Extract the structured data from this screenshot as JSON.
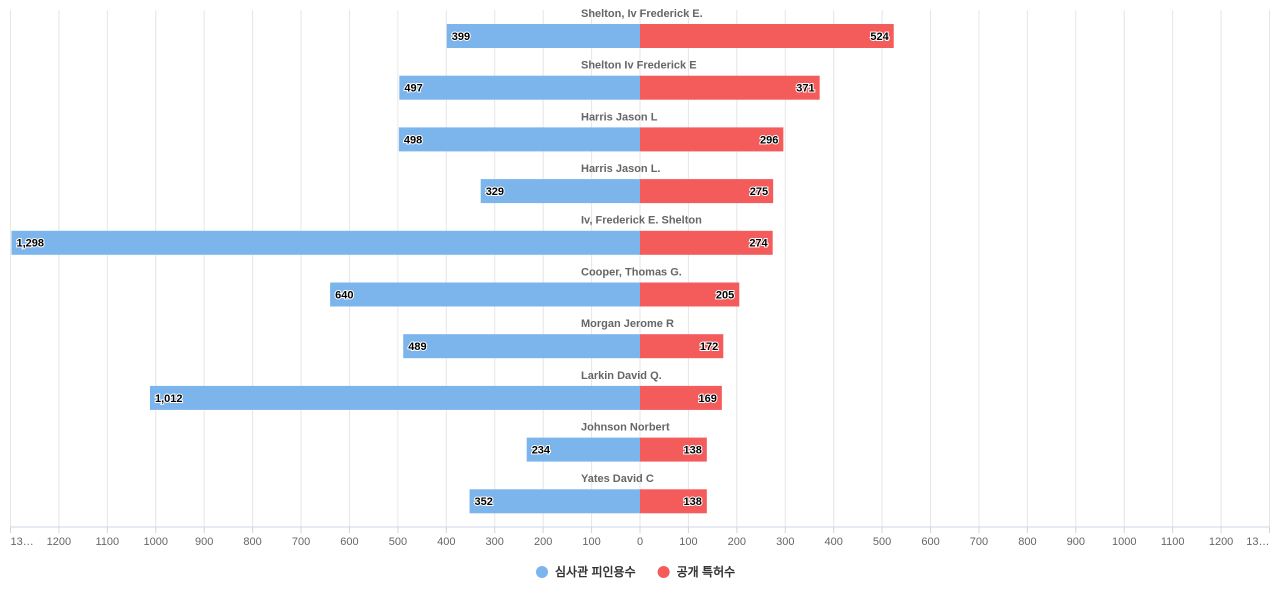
{
  "chart_data": {
    "type": "bar",
    "orientation": "butterfly",
    "categories": [
      "Shelton, Iv Frederick E.",
      "Shelton Iv Frederick E",
      "Harris Jason L",
      "Harris Jason L.",
      "Iv, Frederick E. Shelton",
      "Cooper, Thomas G.",
      "Morgan Jerome R",
      "Larkin David Q.",
      "Johnson Norbert",
      "Yates David C"
    ],
    "series": [
      {
        "name": "심사관 피인용수",
        "color": "#7cb5ec",
        "side": "left",
        "values": [
          399,
          497,
          498,
          329,
          1298,
          640,
          489,
          1012,
          234,
          352
        ],
        "value_labels": [
          "399",
          "497",
          "498",
          "329",
          "1,298",
          "640",
          "489",
          "1,012",
          "234",
          "352"
        ]
      },
      {
        "name": "공개 특허수",
        "color": "#f45b5b",
        "side": "right",
        "values": [
          524,
          371,
          296,
          275,
          274,
          205,
          172,
          169,
          138,
          138
        ],
        "value_labels": [
          "524",
          "371",
          "296",
          "275",
          "274",
          "205",
          "172",
          "169",
          "138",
          "138"
        ]
      }
    ],
    "xlim": [
      -1300,
      1300
    ],
    "xticks": [
      {
        "value": -1300,
        "label": "13…"
      },
      {
        "value": -1200,
        "label": "1200"
      },
      {
        "value": -1100,
        "label": "1100"
      },
      {
        "value": -1000,
        "label": "1000"
      },
      {
        "value": -900,
        "label": "900"
      },
      {
        "value": -800,
        "label": "800"
      },
      {
        "value": -700,
        "label": "700"
      },
      {
        "value": -600,
        "label": "600"
      },
      {
        "value": -500,
        "label": "500"
      },
      {
        "value": -400,
        "label": "400"
      },
      {
        "value": -300,
        "label": "300"
      },
      {
        "value": -200,
        "label": "200"
      },
      {
        "value": -100,
        "label": "100"
      },
      0,
      100,
      200,
      300,
      400,
      500,
      600,
      700,
      800,
      900,
      1000,
      1100,
      1200,
      {
        "value": 1300,
        "label": "13…"
      }
    ],
    "grid": true,
    "legend": "bottom"
  }
}
